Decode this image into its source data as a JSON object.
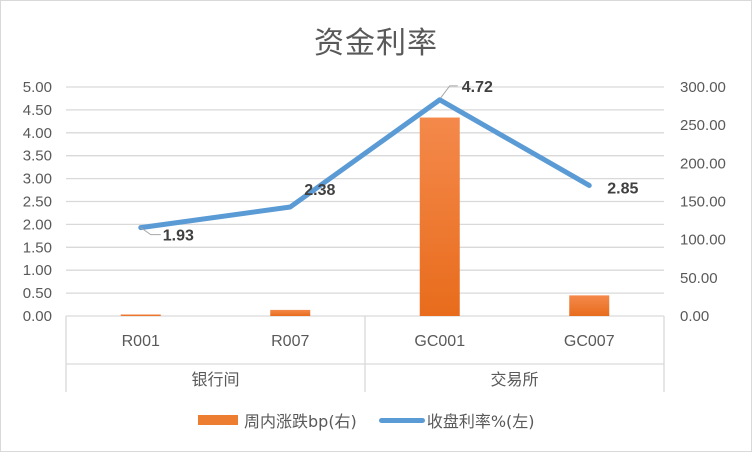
{
  "chart_data": {
    "type": "bar+line",
    "title": "资金利率",
    "groups": [
      {
        "label": "银行间",
        "categories": [
          "R001",
          "R007"
        ]
      },
      {
        "label": "交易所",
        "categories": [
          "GC001",
          "GC007"
        ]
      }
    ],
    "categories": [
      "R001",
      "R007",
      "GC001",
      "GC007"
    ],
    "series": [
      {
        "name": "周内涨跌bp(右)",
        "type": "bar",
        "axis": "right",
        "color": "#ed7d31",
        "values": [
          2,
          8,
          260,
          27
        ]
      },
      {
        "name": "收盘利率%(左)",
        "type": "line",
        "axis": "left",
        "color": "#5b9bd5",
        "values": [
          1.93,
          2.38,
          4.72,
          2.85
        ],
        "data_labels": [
          "1.93",
          "2.38",
          "4.72",
          "2.85"
        ]
      }
    ],
    "left_axis": {
      "ylim": [
        0,
        5
      ],
      "ticks": [
        "0.00",
        "0.50",
        "1.00",
        "1.50",
        "2.00",
        "2.50",
        "3.00",
        "3.50",
        "4.00",
        "4.50",
        "5.00"
      ]
    },
    "right_axis": {
      "ylim": [
        0,
        300
      ],
      "ticks": [
        "0.00",
        "50.00",
        "100.00",
        "150.00",
        "200.00",
        "250.00",
        "300.00"
      ]
    },
    "grid": true,
    "legend_position": "bottom"
  },
  "legend": {
    "bar_label": "周内涨跌bp(右)",
    "line_label": "收盘利率%(左)"
  }
}
